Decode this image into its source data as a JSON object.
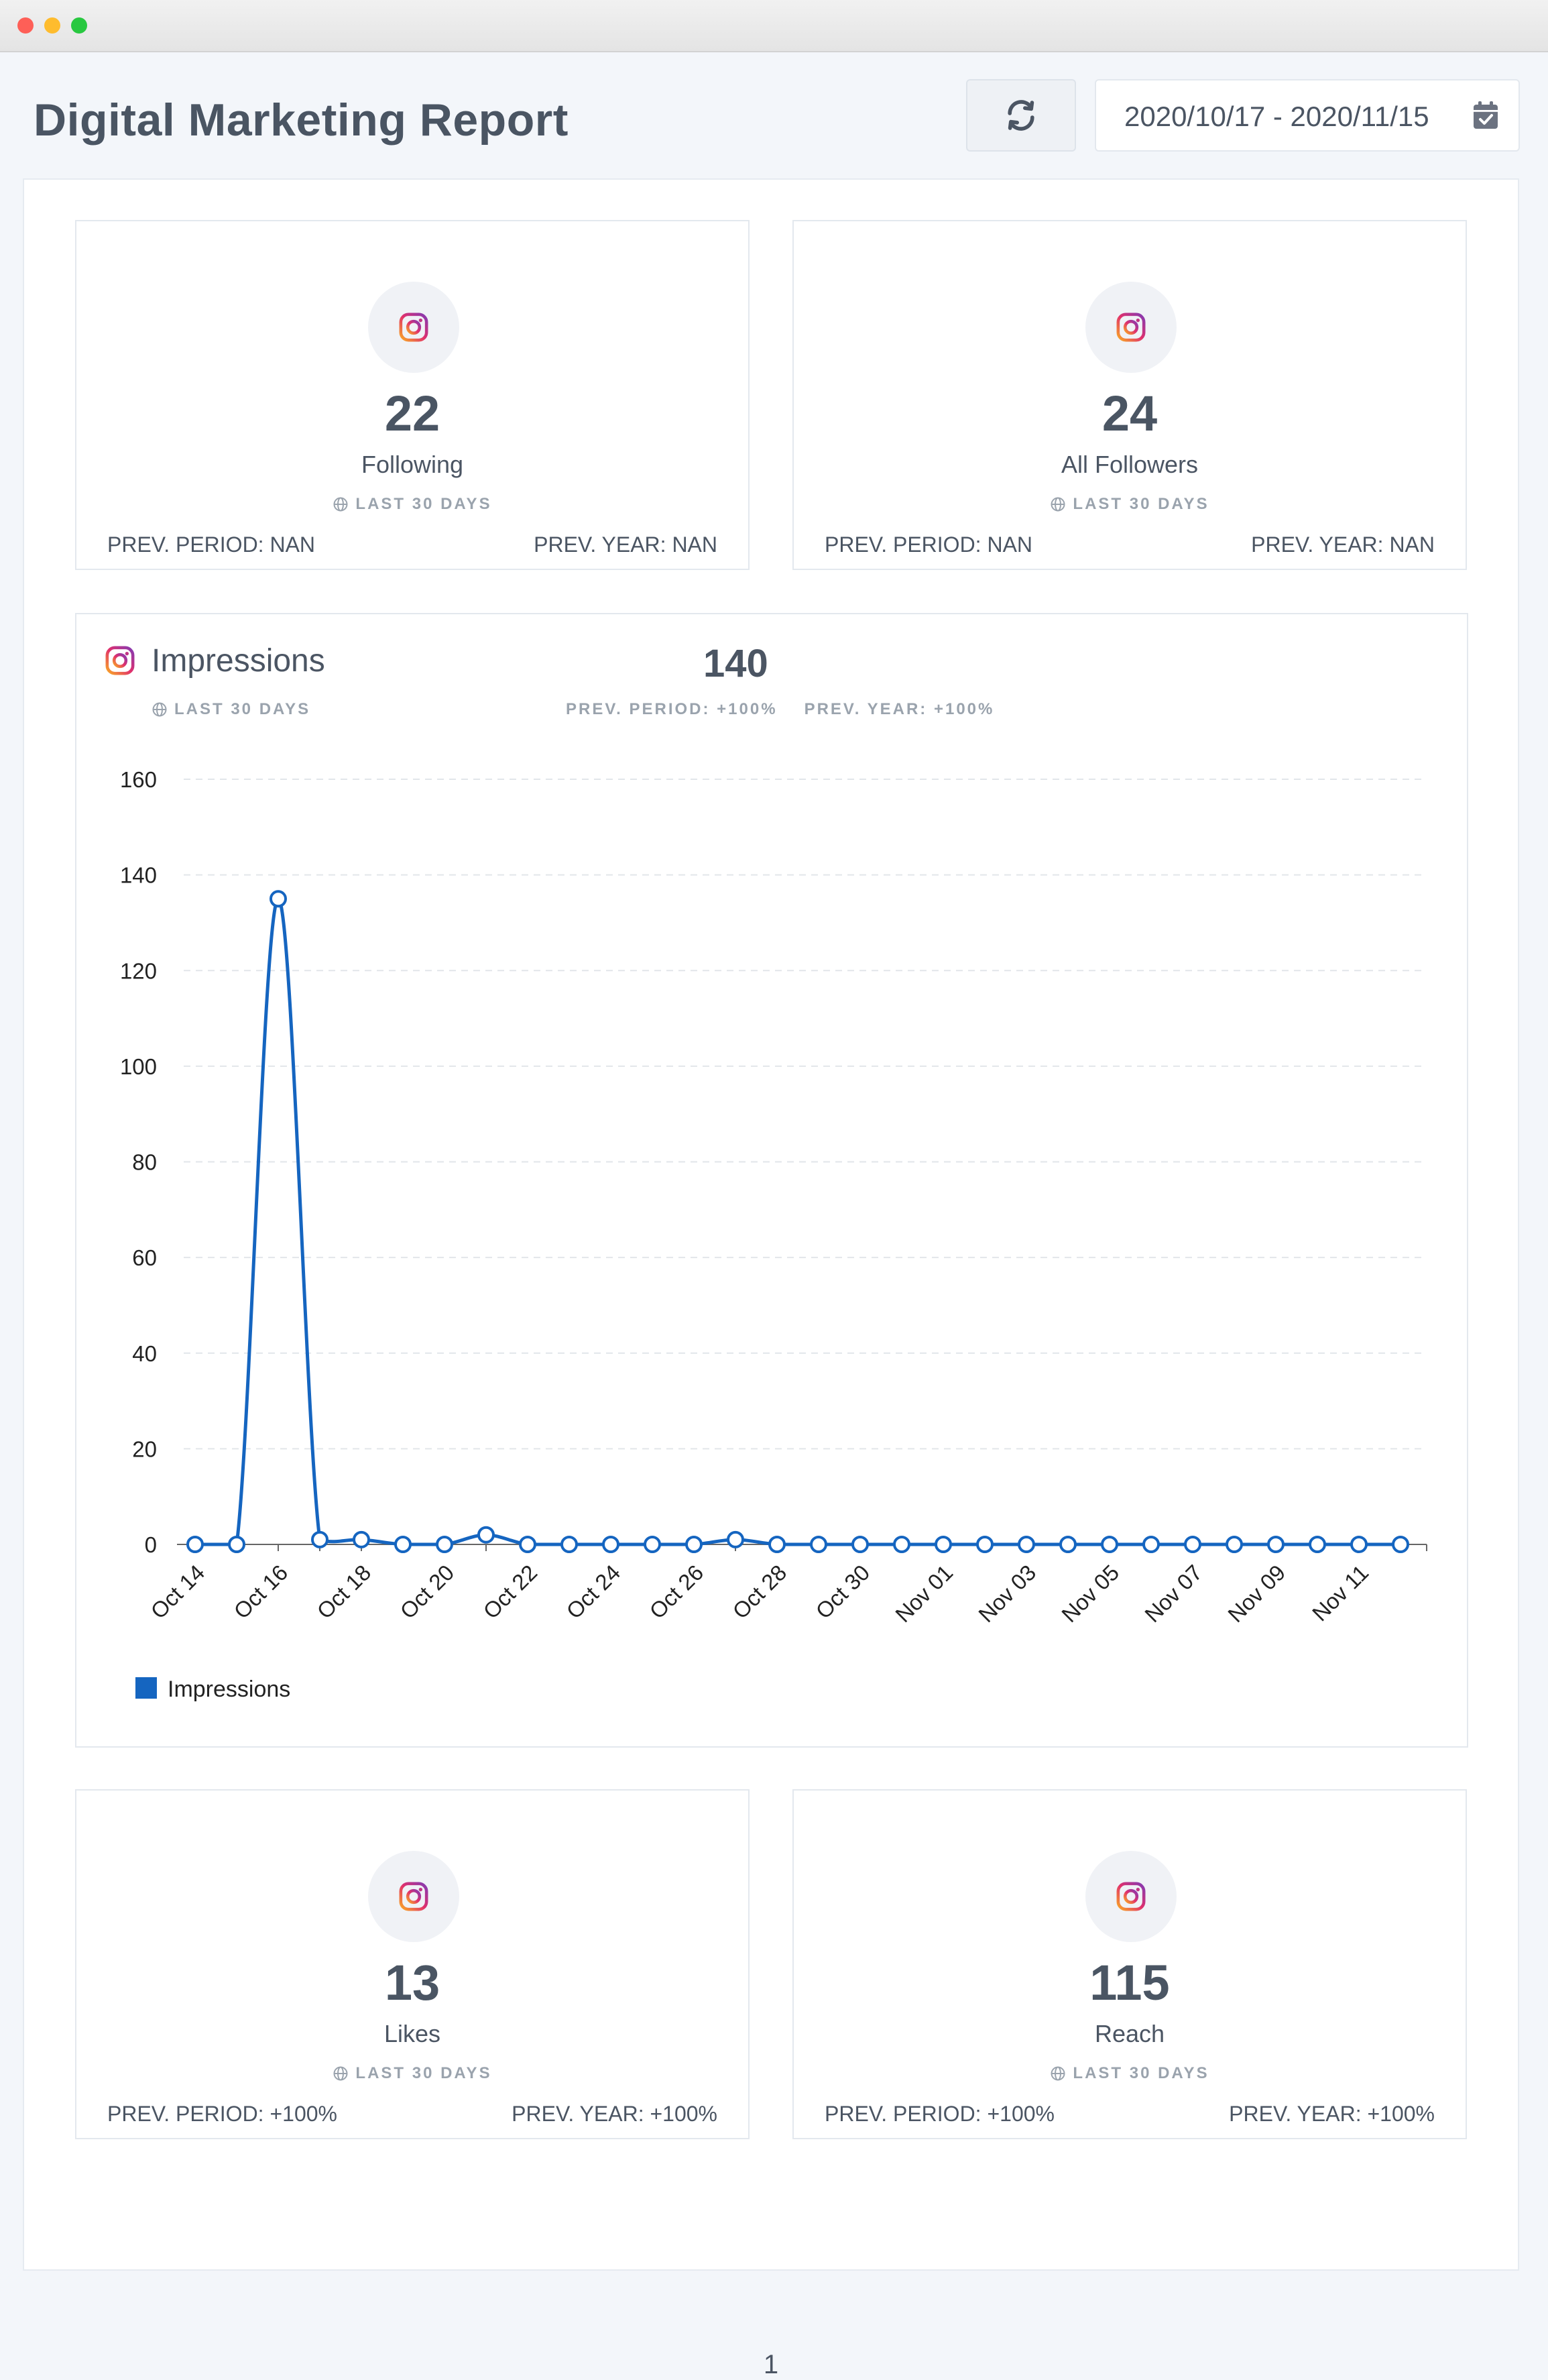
{
  "header": {
    "title": "Digital Marketing Report",
    "date_range": "2020/10/17 - 2020/11/15"
  },
  "icons": {
    "refresh": "refresh-icon",
    "calendar": "calendar-check-icon",
    "instagram": "instagram-icon",
    "globe": "globe-icon"
  },
  "colors": {
    "accent": "#1565c0",
    "text": "#4b5563",
    "muted": "#9aa3ad"
  },
  "stats_top": [
    {
      "value": "22",
      "label": "Following",
      "period": "LAST 30 DAYS",
      "prev_period": "PREV. PERIOD: NAN",
      "prev_year": "PREV. YEAR: NAN"
    },
    {
      "value": "24",
      "label": "All Followers",
      "period": "LAST 30 DAYS",
      "prev_period": "PREV. PERIOD: NAN",
      "prev_year": "PREV. YEAR: NAN"
    }
  ],
  "impressions": {
    "title": "Impressions",
    "period": "LAST 30 DAYS",
    "total": "140",
    "prev_period": "PREV. PERIOD: +100%",
    "prev_year": "PREV. YEAR: +100%"
  },
  "chart_data": {
    "type": "line",
    "x": [
      "Oct 14",
      "Oct 15",
      "Oct 16",
      "Oct 17",
      "Oct 18",
      "Oct 19",
      "Oct 20",
      "Oct 21",
      "Oct 22",
      "Oct 23",
      "Oct 24",
      "Oct 25",
      "Oct 26",
      "Oct 27",
      "Oct 28",
      "Oct 29",
      "Oct 30",
      "Oct 31",
      "Nov 01",
      "Nov 02",
      "Nov 03",
      "Nov 04",
      "Nov 05",
      "Nov 06",
      "Nov 07",
      "Nov 08",
      "Nov 09",
      "Nov 10",
      "Nov 11",
      "Nov 12"
    ],
    "xticks": [
      "Oct 14",
      "Oct 16",
      "Oct 18",
      "Oct 20",
      "Oct 22",
      "Oct 24",
      "Oct 26",
      "Oct 28",
      "Oct 30",
      "Nov 01",
      "Nov 03",
      "Nov 05",
      "Nov 07",
      "Nov 09",
      "Nov 11"
    ],
    "series": [
      {
        "name": "Impressions",
        "color": "#1565c0",
        "values": [
          0,
          0,
          135,
          1,
          1,
          0,
          0,
          2,
          0,
          0,
          0,
          0,
          0,
          1,
          0,
          0,
          0,
          0,
          0,
          0,
          0,
          0,
          0,
          0,
          0,
          0,
          0,
          0,
          0,
          0
        ]
      }
    ],
    "ylim": [
      0,
      160
    ],
    "yticks": [
      0,
      20,
      40,
      60,
      80,
      100,
      120,
      140,
      160
    ],
    "grid": true,
    "legend": "bottom-left"
  },
  "stats_bottom": [
    {
      "value": "13",
      "label": "Likes",
      "period": "LAST 30 DAYS",
      "prev_period": "PREV. PERIOD: +100%",
      "prev_year": "PREV. YEAR: +100%"
    },
    {
      "value": "115",
      "label": "Reach",
      "period": "LAST 30 DAYS",
      "prev_period": "PREV. PERIOD: +100%",
      "prev_year": "PREV. YEAR: +100%"
    }
  ],
  "footer": {
    "page_number": "1"
  }
}
